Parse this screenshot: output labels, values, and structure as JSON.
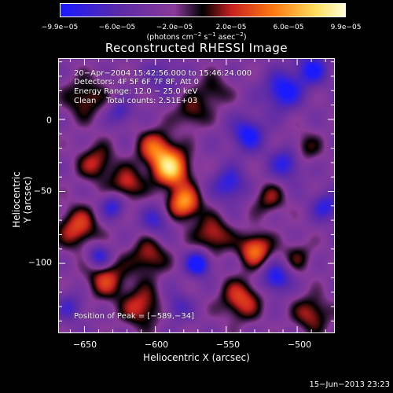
{
  "colorbar": {
    "ticks": [
      "−9.9e−05",
      "−6.0e−05",
      "−2.0e−05",
      "2.0e−05",
      "6.0e−05",
      "9.9e−05"
    ],
    "units_main": "(photons cm",
    "units_exp1": "−2",
    "units_mid": " s",
    "units_exp2": "−1",
    "units_end": " asec",
    "units_exp3": "−2",
    "units_close": ")",
    "colors": [
      "#1a1aff",
      "#5a2aa8",
      "#8a3a9a",
      "#000000",
      "#c82020",
      "#ff7a10",
      "#ffe060",
      "#ffffd8"
    ]
  },
  "title": "Reconstructed RHESSI Image",
  "annotations": {
    "line1": "20−Apr−2004 15:42:56.000 to 15:46:24.000",
    "line2": "Detectors: 4F 5F 6F 7F 8F, Att 0",
    "line3": "Energy Range: 12.0 − 25.0 keV",
    "line4": "Clean    Total counts: 2.51E+03",
    "peak": "Position of Peak = [−589,−34]"
  },
  "chart_data": {
    "type": "heatmap",
    "title": "Reconstructed RHESSI Image",
    "xlabel": "Heliocentric X (arcsec)",
    "ylabel": "Heliocentric Y (arcsec)",
    "xlim": [
      -668,
      -474
    ],
    "ylim": [
      -148,
      42
    ],
    "zlim": [
      -9.9e-05,
      9.9e-05
    ],
    "x_ticks": [
      -650,
      -600,
      -550,
      -500
    ],
    "y_ticks": [
      0,
      -50,
      -100
    ],
    "x_tick_labels": [
      "−650",
      "−600",
      "−550",
      "−500"
    ],
    "y_tick_labels": [
      "0",
      "−50",
      "−100"
    ],
    "peak": [
      -589,
      -34
    ],
    "blobs": [
      {
        "x": -589,
        "y": -34,
        "v": 9.9e-05,
        "s": 9
      },
      {
        "x": -580,
        "y": -58,
        "v": 8.5e-05,
        "s": 8
      },
      {
        "x": -600,
        "y": -20,
        "v": 6.5e-05,
        "s": 9
      },
      {
        "x": -620,
        "y": -45,
        "v": 5.5e-05,
        "s": 8
      },
      {
        "x": -650,
        "y": 15,
        "v": 4.5e-05,
        "s": 10
      },
      {
        "x": -642,
        "y": -30,
        "v": 5e-05,
        "s": 9
      },
      {
        "x": -655,
        "y": -75,
        "v": 6e-05,
        "s": 10
      },
      {
        "x": -635,
        "y": -110,
        "v": 5.5e-05,
        "s": 10
      },
      {
        "x": -605,
        "y": -95,
        "v": 5e-05,
        "s": 9
      },
      {
        "x": -610,
        "y": -130,
        "v": 5.5e-05,
        "s": 10
      },
      {
        "x": -560,
        "y": -80,
        "v": 5.5e-05,
        "s": 9
      },
      {
        "x": -530,
        "y": -90,
        "v": 7.5e-05,
        "s": 8
      },
      {
        "x": -520,
        "y": -55,
        "v": 4e-05,
        "s": 8
      },
      {
        "x": -540,
        "y": -125,
        "v": 6e-05,
        "s": 10
      },
      {
        "x": -575,
        "y": 5,
        "v": 4e-05,
        "s": 8
      },
      {
        "x": -560,
        "y": 20,
        "v": 3.5e-05,
        "s": 8
      },
      {
        "x": -495,
        "y": -20,
        "v": 3.5e-05,
        "s": 8
      },
      {
        "x": -490,
        "y": -135,
        "v": 5e-05,
        "s": 9
      },
      {
        "x": -500,
        "y": -95,
        "v": 3e-05,
        "s": 8
      },
      {
        "x": -630,
        "y": -60,
        "v": -5.5e-05,
        "s": 6
      },
      {
        "x": -600,
        "y": -70,
        "v": -4.5e-05,
        "s": 7
      },
      {
        "x": -548,
        "y": -45,
        "v": -6e-05,
        "s": 8
      },
      {
        "x": -535,
        "y": -10,
        "v": -7e-05,
        "s": 8
      },
      {
        "x": -510,
        "y": 20,
        "v": -7.5e-05,
        "s": 9
      },
      {
        "x": -490,
        "y": 35,
        "v": -6.5e-05,
        "s": 8
      },
      {
        "x": -508,
        "y": -30,
        "v": -6e-05,
        "s": 8
      },
      {
        "x": -570,
        "y": -100,
        "v": -8.5e-05,
        "s": 6
      },
      {
        "x": -640,
        "y": -95,
        "v": -6.5e-05,
        "s": 6
      },
      {
        "x": -515,
        "y": -110,
        "v": -7e-05,
        "s": 7
      },
      {
        "x": -625,
        "y": 5,
        "v": -4.5e-05,
        "s": 6
      },
      {
        "x": -595,
        "y": 30,
        "v": -3.5e-05,
        "s": 8
      },
      {
        "x": -480,
        "y": -60,
        "v": -5.5e-05,
        "s": 7
      },
      {
        "x": -660,
        "y": -130,
        "v": -4e-05,
        "s": 7
      },
      {
        "x": -585,
        "y": -130,
        "v": -4e-05,
        "s": 7
      }
    ],
    "grid": false
  },
  "footer": "15−Jun−2013 23:23"
}
